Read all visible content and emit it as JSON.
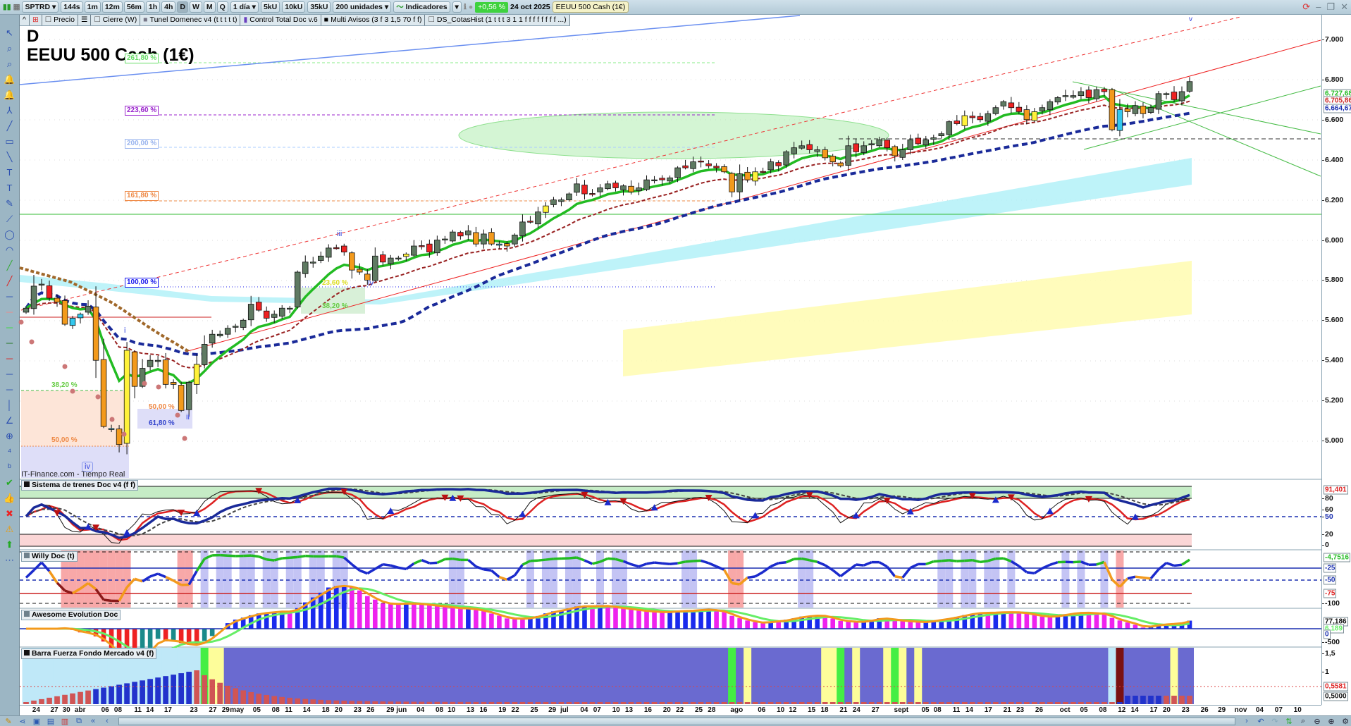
{
  "toolbar": {
    "symbol": "SPTRD",
    "intervals": [
      "144s",
      "1m",
      "12m",
      "56m",
      "1h",
      "4h",
      "D",
      "W",
      "M",
      "Q"
    ],
    "active_interval": "D",
    "period": "1 día",
    "volume_buttons": [
      "5kU",
      "10kU",
      "35kU"
    ],
    "units": "200 unidades",
    "indicators_label": "Indicadores",
    "change_pct": "+0,56 %",
    "date": "24 oct 2025",
    "instrument": "EEUU 500 Cash (1€)"
  },
  "legend": [
    {
      "label": "Precio",
      "marker": "☐"
    },
    {
      "label": "Cierre (W)",
      "marker": "☐"
    },
    {
      "label": "Tunel Domenec v4 (t t t t t)",
      "marker": "■"
    },
    {
      "label": "Control Total Doc v.6",
      "marker": "▮"
    },
    {
      "label": "Multi Avisos (3 f 3 1,5 70 f f)",
      "marker": "■"
    },
    {
      "label": "DS_CotasHist (1 t t t 3 1 1 f f f f f f f f ...)",
      "marker": "☐"
    }
  ],
  "main_chart": {
    "timeframe": "D",
    "title": "EEUU 500 Cash (1€)",
    "watermark": "IT-Finance.com - Tiempo Real",
    "price_ticks": [
      "7.000",
      "6.800",
      "6.600",
      "6.400",
      "6.200",
      "6.000",
      "5.800",
      "5.600",
      "5.400",
      "5.200",
      "5.000"
    ],
    "price_labels": [
      {
        "text": "6.727,68",
        "color": "#22bb22"
      },
      {
        "text": "6.705,86",
        "color": "#cc2222"
      },
      {
        "text": "6.664,67",
        "color": "#1a2fb0"
      }
    ],
    "fib_levels": [
      {
        "text": "261,80 %",
        "color": "#66dd66"
      },
      {
        "text": "223,60 %",
        "color": "#9922cc"
      },
      {
        "text": "200,00 %",
        "color": "#99b4ee"
      },
      {
        "text": "161,80 %",
        "color": "#ee8844"
      },
      {
        "text": "100,00 %",
        "color": "#1a1aee"
      },
      {
        "text": "38,20 %",
        "color": "#66cc44"
      },
      {
        "text": "50,00 %",
        "color": "#ee8844"
      },
      {
        "text": "50,00 %",
        "color": "#ee8844"
      },
      {
        "text": "61,80 %",
        "color": "#3344cc"
      },
      {
        "text": "23,60 %",
        "color": "#dddd22"
      },
      {
        "text": "38,20 %",
        "color": "#66cc44"
      }
    ],
    "wave_labels": [
      "i",
      "ii",
      "iii",
      "iv",
      "iv",
      "v"
    ],
    "closes": [
      5660,
      5770,
      5780,
      5710,
      5690,
      5580,
      5610,
      5630,
      5670,
      5400,
      5070,
      5060,
      4980,
      5450,
      5270,
      5360,
      5400,
      5400,
      5280,
      5280,
      5150,
      5290,
      5380,
      5480,
      5530,
      5530,
      5560,
      5570,
      5600,
      5680,
      5650,
      5610,
      5630,
      5660,
      5660,
      5840,
      5890,
      5890,
      5920,
      5960,
      5960,
      5940,
      5850,
      5840,
      5800,
      5920,
      5890,
      5910,
      5910,
      5930,
      5970,
      5970,
      5940,
      6000,
      6005,
      6040,
      6020,
      6045,
      5980,
      6030,
      5980,
      5980,
      5970,
      6025,
      6090,
      6090,
      6140,
      6170,
      6200,
      6200,
      6230,
      6280,
      6230,
      6230,
      6260,
      6280,
      6260,
      6270,
      6240,
      6260,
      6300,
      6300,
      6300,
      6310,
      6360,
      6360,
      6390,
      6390,
      6370,
      6360,
      6340,
      6240,
      6330,
      6300,
      6340,
      6340,
      6390,
      6370,
      6440,
      6460,
      6470,
      6450,
      6450,
      6410,
      6390,
      6370,
      6470,
      6440,
      6470,
      6480,
      6500,
      6460,
      6420,
      6450,
      6500,
      6480,
      6500,
      6510,
      6530,
      6590,
      6580,
      6620,
      6610,
      6600,
      6630,
      6660,
      6690,
      6660,
      6640,
      6600,
      6640,
      6660,
      6690,
      6710,
      6720,
      6720,
      6740,
      6710,
      6750,
      6740,
      6550,
      6650,
      6640,
      6670,
      6630,
      6660,
      6730,
      6730,
      6700,
      6740,
      6790
    ]
  },
  "panels": [
    {
      "title": "Sistema de trenes Doc v4 (f f)",
      "ticks": [
        "91,401",
        "80",
        "60",
        "50",
        "20",
        "0"
      ],
      "value_color": "#dd2222"
    },
    {
      "title": "Willy Doc (t)",
      "ticks": [
        "-4,7516",
        "-25",
        "-50",
        "-75",
        "-100"
      ],
      "value_color": "#22bb22"
    },
    {
      "title": "Awesome Evolution Doc",
      "ticks": [
        "77,186",
        "6,189",
        "0",
        "-500"
      ],
      "value_color": "#66ee66"
    },
    {
      "title": "Barra Fuerza Fondo Mercado v4 (f)",
      "ticks": [
        "1,5",
        "1",
        "0,5581",
        "0,5000"
      ],
      "value_color": "#dd2222"
    }
  ],
  "date_axis": [
    "24",
    "27",
    "30",
    "abr",
    "06",
    "08",
    "11",
    "14",
    "17",
    "23",
    "27",
    "29",
    "may",
    "05",
    "08",
    "11",
    "14",
    "18",
    "20",
    "23",
    "26",
    "29",
    "jun",
    "04",
    "08",
    "10",
    "13",
    "16",
    "19",
    "22",
    "25",
    "29",
    "jul",
    "04",
    "07",
    "10",
    "13",
    "16",
    "20",
    "22",
    "25",
    "28",
    "ago",
    "06",
    "10",
    "12",
    "15",
    "18",
    "21",
    "24",
    "27",
    "sept",
    "05",
    "08",
    "11",
    "14",
    "17",
    "21",
    "23",
    "26",
    "oct",
    "05",
    "08",
    "12",
    "14",
    "17",
    "20",
    "23",
    "26",
    "29",
    "nov",
    "04",
    "07",
    "10"
  ]
}
